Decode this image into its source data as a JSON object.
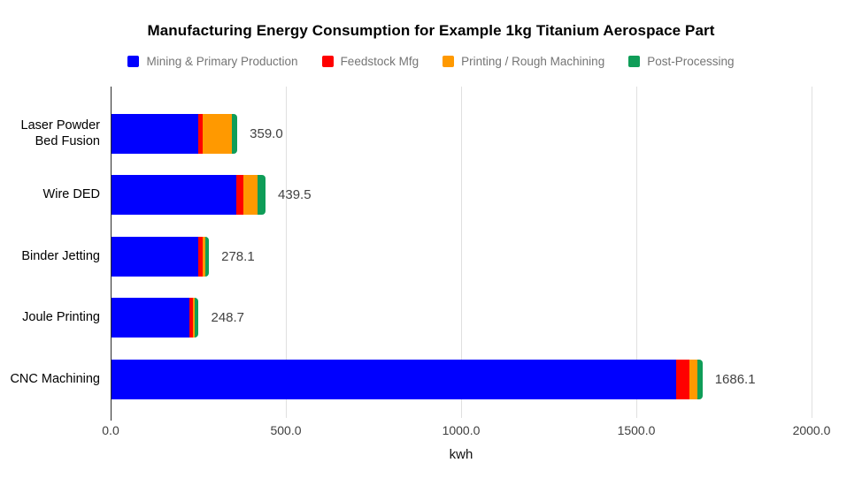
{
  "chart_data": {
    "type": "bar",
    "orientation": "horizontal-stacked",
    "title": "Manufacturing Energy Consumption for Example 1kg Titanium Aerospace Part",
    "categories": [
      "Laser Powder Bed Fusion",
      "Wire DED",
      "Binder Jetting",
      "Joule Printing",
      "CNC Machining"
    ],
    "series": [
      {
        "name": "Mining & Primary Production",
        "color": "#0000ff",
        "values": [
          248,
          356,
          247,
          223,
          1610
        ]
      },
      {
        "name": "Feedstock Mfg",
        "color": "#ff0000",
        "values": [
          13,
          21,
          12.5,
          9.2,
          40
        ]
      },
      {
        "name": "Printing / Rough Machining",
        "color": "#ff9900",
        "values": [
          83,
          40,
          8.5,
          5.5,
          21
        ]
      },
      {
        "name": "Post-Processing",
        "color": "#0f9d58",
        "values": [
          15,
          22.5,
          10.1,
          11,
          15.1
        ]
      }
    ],
    "totals": [
      359.0,
      439.5,
      278.1,
      248.7,
      1686.1
    ],
    "total_labels": [
      "359.0",
      "439.5",
      "278.1",
      "248.7",
      "1686.1"
    ],
    "xlabel": "kwh",
    "xlim": [
      0,
      2000
    ],
    "x_ticks": [
      0,
      500,
      1000,
      1500,
      2000
    ],
    "x_tick_labels": [
      "0.0",
      "500.0",
      "1000.0",
      "1500.0",
      "2000.0"
    ],
    "grid": true,
    "legend_position": "top",
    "colors": {
      "background": "#ffffff",
      "gridline": "#e0e0e0",
      "axis_line": "#2b2b2b",
      "title_text": "#000000",
      "legend_text": "#757575",
      "value_label_text": "#424242",
      "tick_label_text": "#3f3f3f"
    }
  }
}
